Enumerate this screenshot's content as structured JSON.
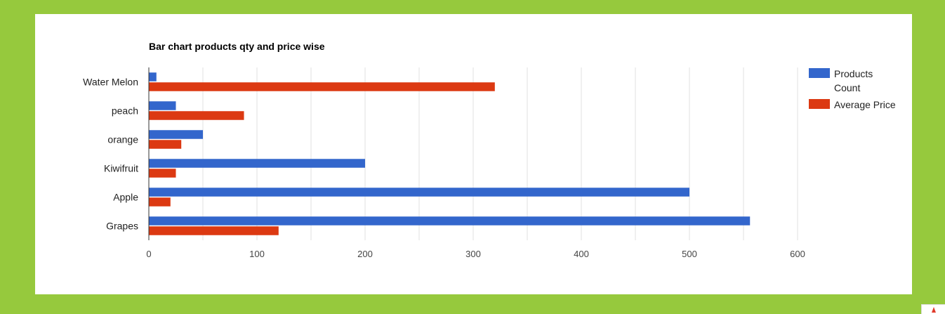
{
  "chart_data": {
    "type": "bar",
    "orientation": "horizontal",
    "title": "Bar chart products qty and price wise",
    "categories": [
      "Water Melon",
      "peach",
      "orange",
      "Kiwifruit",
      "Apple",
      "Grapes"
    ],
    "series": [
      {
        "name": "Products Count",
        "color": "#3366cc",
        "values": [
          7,
          25,
          50,
          200,
          500,
          556
        ]
      },
      {
        "name": "Average Price",
        "color": "#dc3912",
        "values": [
          320,
          88,
          30,
          25,
          20,
          120
        ]
      }
    ],
    "xlim": [
      0,
      600
    ],
    "xticks": [
      0,
      100,
      200,
      300,
      400,
      500,
      600
    ],
    "grid": true,
    "legend": {
      "position": "right",
      "entries": [
        "Products Count",
        "Average Price"
      ]
    }
  }
}
